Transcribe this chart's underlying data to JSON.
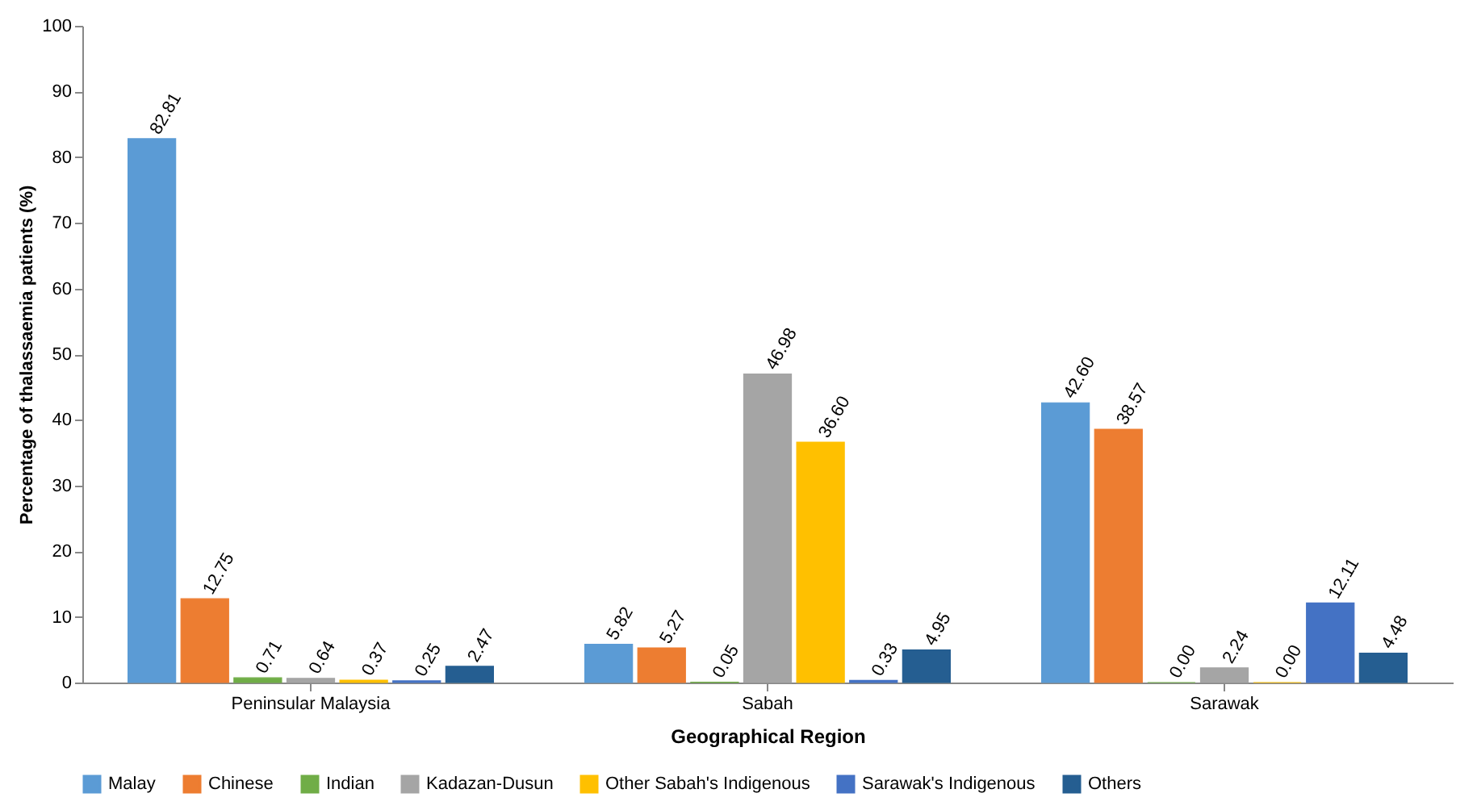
{
  "chart_data": {
    "type": "bar",
    "xlabel": "Geographical Region",
    "ylabel": "Percentage of thalassaemia patients (%)",
    "categories": [
      "Peninsular Malaysia",
      "Sabah",
      "Sarawak"
    ],
    "series": [
      {
        "name": "Malay",
        "color": "#5b9bd5",
        "values": [
          82.81,
          5.82,
          42.6
        ],
        "value_labels": [
          "82.81",
          "5.82",
          "42.60"
        ]
      },
      {
        "name": "Chinese",
        "color": "#ed7d31",
        "values": [
          12.75,
          5.27,
          38.57
        ],
        "value_labels": [
          "12.75",
          "5.27",
          "38.57"
        ]
      },
      {
        "name": "Indian",
        "color": "#70ad47",
        "values": [
          0.71,
          0.05,
          0.0
        ],
        "value_labels": [
          "0.71",
          "0.05",
          "0.00"
        ]
      },
      {
        "name": "Kadazan-Dusun",
        "color": "#a5a5a5",
        "values": [
          0.64,
          46.98,
          2.24
        ],
        "value_labels": [
          "0.64",
          "46.98",
          "2.24"
        ]
      },
      {
        "name": "Other Sabah's Indigenous",
        "color": "#ffc000",
        "values": [
          0.37,
          36.6,
          0.0
        ],
        "value_labels": [
          "0.37",
          "36.60",
          "0.00"
        ]
      },
      {
        "name": "Sarawak's Indigenous",
        "color": "#4472c4",
        "values": [
          0.25,
          0.33,
          12.11
        ],
        "value_labels": [
          "0.25",
          "0.33",
          "12.11"
        ]
      },
      {
        "name": "Others",
        "color": "#255e91",
        "values": [
          2.47,
          4.95,
          4.48
        ],
        "value_labels": [
          "2.47",
          "4.95",
          "4.48"
        ]
      }
    ],
    "ylim": [
      0,
      100
    ],
    "yticks": [
      0,
      10,
      20,
      30,
      40,
      50,
      60,
      70,
      80,
      90,
      100
    ],
    "grid": false,
    "legend": "bottom"
  }
}
